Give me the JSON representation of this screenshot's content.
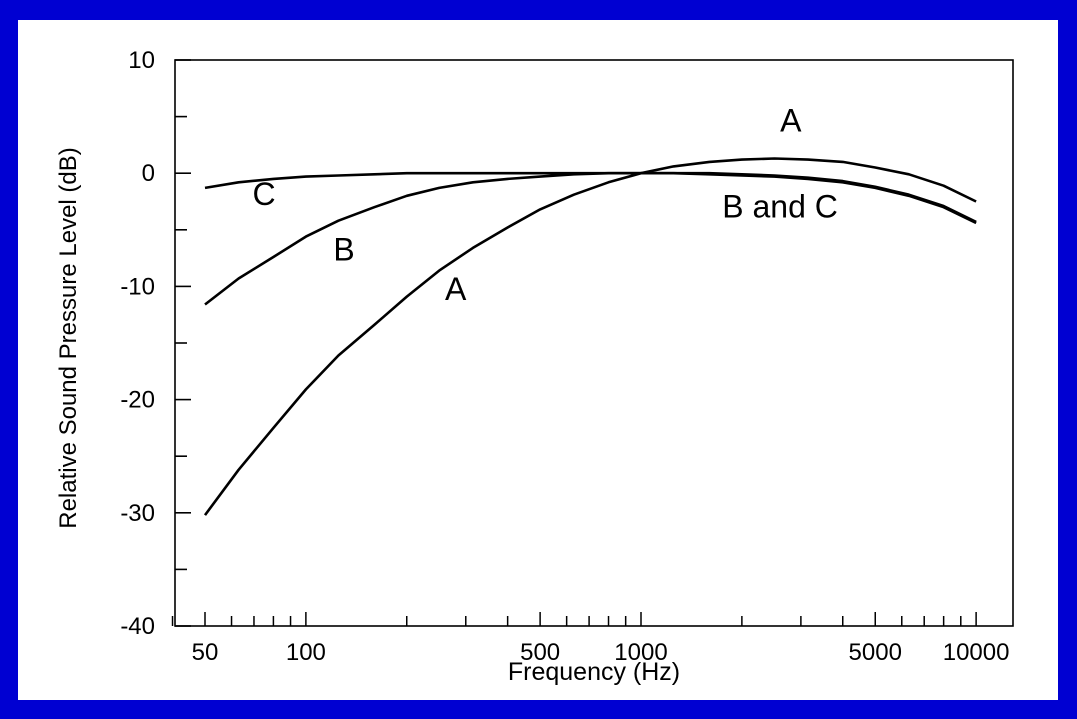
{
  "colors": {
    "background": "#0000d2",
    "panel": "#ffffff",
    "ink": "#000000"
  },
  "chart_data": {
    "type": "line",
    "title": "",
    "xlabel": "Frequency (Hz)",
    "ylabel": "Relative Sound Pressure Level (dB)",
    "x_scale": "log",
    "xlim": [
      40,
      12000
    ],
    "ylim": [
      -40,
      10
    ],
    "x_tick_labels": [
      "50",
      "100",
      "500",
      "1000",
      "5000",
      "10000"
    ],
    "y_tick_labels": [
      "10",
      "0",
      "-10",
      "-20",
      "-30",
      "-40"
    ],
    "grid": false,
    "series": [
      {
        "name": "A",
        "x": [
          50,
          63,
          80,
          100,
          125,
          160,
          200,
          250,
          315,
          400,
          500,
          630,
          800,
          1000,
          1250,
          1600,
          2000,
          2500,
          3150,
          4000,
          5000,
          6300,
          8000,
          10000
        ],
        "y": [
          -30.2,
          -26.2,
          -22.5,
          -19.1,
          -16.1,
          -13.4,
          -10.9,
          -8.6,
          -6.6,
          -4.8,
          -3.2,
          -1.9,
          -0.8,
          0.0,
          0.6,
          1.0,
          1.2,
          1.3,
          1.2,
          1.0,
          0.5,
          -0.1,
          -1.1,
          -2.5
        ]
      },
      {
        "name": "B",
        "x": [
          50,
          63,
          80,
          100,
          125,
          160,
          200,
          250,
          315,
          400,
          500,
          630,
          800,
          1000,
          1250,
          1600,
          2000,
          2500,
          3150,
          4000,
          5000,
          6300,
          8000,
          10000
        ],
        "y": [
          -11.6,
          -9.3,
          -7.4,
          -5.6,
          -4.2,
          -3.0,
          -2.0,
          -1.3,
          -0.8,
          -0.5,
          -0.3,
          -0.1,
          0.0,
          0.0,
          0.0,
          0.0,
          -0.1,
          -0.2,
          -0.4,
          -0.7,
          -1.2,
          -1.9,
          -2.9,
          -4.3
        ]
      },
      {
        "name": "C",
        "x": [
          50,
          63,
          80,
          100,
          125,
          160,
          200,
          250,
          315,
          400,
          500,
          630,
          800,
          1000,
          1250,
          1600,
          2000,
          2500,
          3150,
          4000,
          5000,
          6300,
          8000,
          10000
        ],
        "y": [
          -1.3,
          -0.8,
          -0.5,
          -0.3,
          -0.2,
          -0.1,
          0.0,
          0.0,
          0.0,
          0.0,
          0.0,
          0.0,
          0.0,
          0.0,
          0.0,
          -0.1,
          -0.2,
          -0.3,
          -0.5,
          -0.8,
          -1.3,
          -2.0,
          -3.0,
          -4.4
        ]
      }
    ],
    "annotations": [
      {
        "text": "A",
        "x": 2800,
        "y": 3.7
      },
      {
        "text": "A",
        "x": 280,
        "y": -11.2
      },
      {
        "text": "B",
        "x": 130,
        "y": -7.7
      },
      {
        "text": "C",
        "x": 75,
        "y": -2.8
      },
      {
        "text": "B and C",
        "x": 2600,
        "y": -3.9
      }
    ]
  }
}
